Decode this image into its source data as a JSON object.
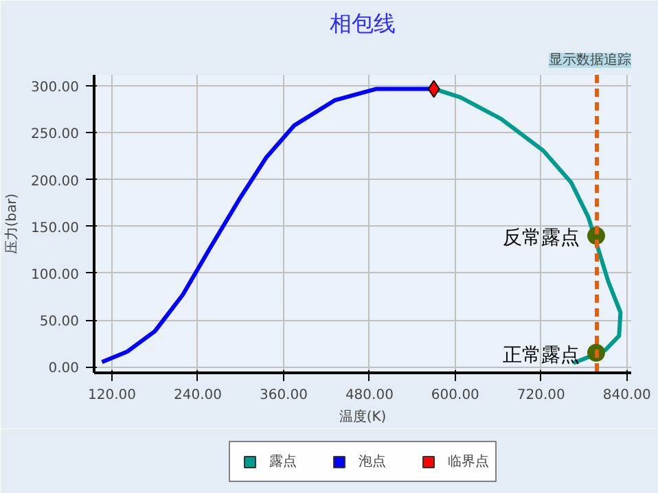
{
  "chart_data": {
    "type": "line",
    "title": "相包线",
    "xlabel": "温度(K)",
    "ylabel": "压力(bar)",
    "xlim": [
      95,
      846
    ],
    "ylim": [
      -6.5,
      312
    ],
    "xticks": [
      {
        "value": 120,
        "label": "120.00"
      },
      {
        "value": 240,
        "label": "240.00"
      },
      {
        "value": 360,
        "label": "360.00"
      },
      {
        "value": 480,
        "label": "480.00"
      },
      {
        "value": 600,
        "label": "600.00"
      },
      {
        "value": 720,
        "label": "720.00"
      },
      {
        "value": 840,
        "label": "840.00"
      }
    ],
    "yticks": [
      {
        "value": 0,
        "label": "0.00"
      },
      {
        "value": 50,
        "label": "50.00"
      },
      {
        "value": 100,
        "label": "100.00"
      },
      {
        "value": 150,
        "label": "150.00"
      },
      {
        "value": 200,
        "label": "200.00"
      },
      {
        "value": 250,
        "label": "250.00"
      },
      {
        "value": 300,
        "label": "300.00"
      }
    ],
    "grid": true,
    "legend": "bottom",
    "series": [
      {
        "name": "露点",
        "type": "line",
        "color": "#009a8f",
        "x": [
          570,
          607,
          664,
          723,
          762,
          786,
          814,
          831,
          829,
          810,
          785,
          765
        ],
        "values": [
          297,
          288,
          265,
          231,
          197,
          160,
          91,
          58,
          33,
          18,
          10,
          4
        ]
      },
      {
        "name": "泡点",
        "type": "line",
        "color": "#0000ff",
        "x": [
          106,
          141,
          180,
          219,
          258,
          298,
          336,
          375,
          432,
          490,
          570
        ],
        "values": [
          5,
          16,
          38,
          77,
          128,
          179,
          224,
          258,
          285,
          297,
          297
        ]
      },
      {
        "name": "临界点",
        "type": "scatter",
        "marker": "diamond",
        "color": "#ff0000",
        "x": [
          570
        ],
        "values": [
          297
        ]
      },
      {
        "type": "scatter",
        "marker": "circle",
        "color": "#4a6a00",
        "x": [
          797,
          797
        ],
        "values": [
          140,
          15
        ]
      }
    ],
    "ref_lines": [
      {
        "axis": "x",
        "value": 798,
        "color": "#e06010",
        "line_style": "dashed"
      }
    ],
    "annotations": [
      {
        "text": "反常露点",
        "x": 797,
        "y": 140
      },
      {
        "text": "正常露点",
        "x": 797,
        "y": 15
      },
      "显示数据追踪"
    ]
  }
}
